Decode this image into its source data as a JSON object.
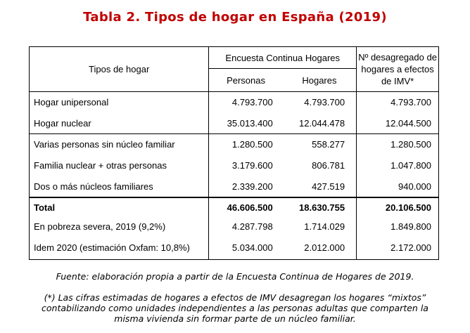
{
  "title": "Tabla 2. Tipos de hogar en España (2019)",
  "table": {
    "header_col1": "Tipos de hogar",
    "header_group": "Encuesta Continua Hogares",
    "header_sub1": "Personas",
    "header_sub2": "Hogares",
    "header_col4": "Nº desagregado de hogares a efectos de IMV*",
    "rows": [
      {
        "label": "Hogar unipersonal",
        "personas": "4.793.700",
        "hogares": "4.793.700",
        "imv": "4.793.700"
      },
      {
        "label": "Hogar nuclear",
        "personas": "35.013.400",
        "hogares": "12.044.478",
        "imv": "12.044.500"
      },
      {
        "label": "Varias personas sin núcleo familiar",
        "personas": "1.280.500",
        "hogares": "558.277",
        "imv": "1.280.500"
      },
      {
        "label": "Familia nuclear + otras personas",
        "personas": "3.179.600",
        "hogares": "806.781",
        "imv": "1.047.800"
      },
      {
        "label": "Dos o más núcleos familiares",
        "personas": "2.339.200",
        "hogares": "427.519",
        "imv": "940.000"
      },
      {
        "label": "Total",
        "personas": "46.606.500",
        "hogares": "18.630.755",
        "imv": "20.106.500"
      },
      {
        "label": "En pobreza severa, 2019 (9,2%)",
        "personas": "4.287.798",
        "hogares": "1.714.029",
        "imv": "1.849.800"
      },
      {
        "label": "Idem 2020 (estimación Oxfam: 10,8%)",
        "personas": "5.034.000",
        "hogares": "2.012.000",
        "imv": "2.172.000"
      }
    ]
  },
  "source_note": "Fuente: elaboración propia a partir de la Encuesta Continua de Hogares de 2019.",
  "footnote": "(*) Las cifras estimadas de hogares a efectos de IMV desagregan los hogares “mixtos” contabilizando como unidades independientes a las personas adultas que comparten la misma vivienda sin formar parte de un núcleo familiar."
}
